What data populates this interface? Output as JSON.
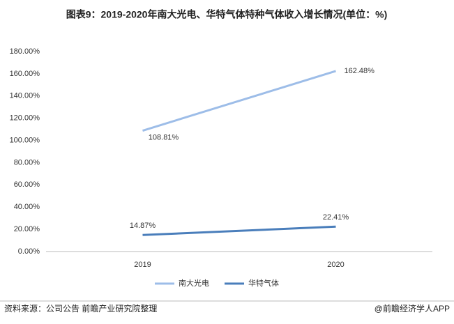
{
  "chart_data": {
    "type": "line",
    "title": "图表9：2019-2020年南大光电、华特气体特种气体收入增长情况(单位：%)",
    "categories": [
      "2019",
      "2020"
    ],
    "series": [
      {
        "name": "南大光电",
        "color": "#9dbde8",
        "values": [
          108.81,
          162.48
        ],
        "value_labels": [
          "108.81%",
          "162.48%"
        ]
      },
      {
        "name": "华特气体",
        "color": "#4a7ebb",
        "values": [
          14.87,
          22.41
        ],
        "value_labels": [
          "14.87%",
          "22.41%"
        ]
      }
    ],
    "ylim": [
      0,
      180
    ],
    "yticks": [
      {
        "value": 0,
        "label": "0.00%"
      },
      {
        "value": 20,
        "label": "20.00%"
      },
      {
        "value": 40,
        "label": "40.00%"
      },
      {
        "value": 60,
        "label": "60.00%"
      },
      {
        "value": 80,
        "label": "80.00%"
      },
      {
        "value": 100,
        "label": "100.00%"
      },
      {
        "value": 120,
        "label": "120.00%"
      },
      {
        "value": 140,
        "label": "140.00%"
      },
      {
        "value": 160,
        "label": "160.00%"
      },
      {
        "value": 180,
        "label": "180.00%"
      }
    ],
    "grid": false,
    "source": "资料来源：公司公告 前瞻产业研究院整理",
    "credit": "@前瞻经济学人APP"
  }
}
